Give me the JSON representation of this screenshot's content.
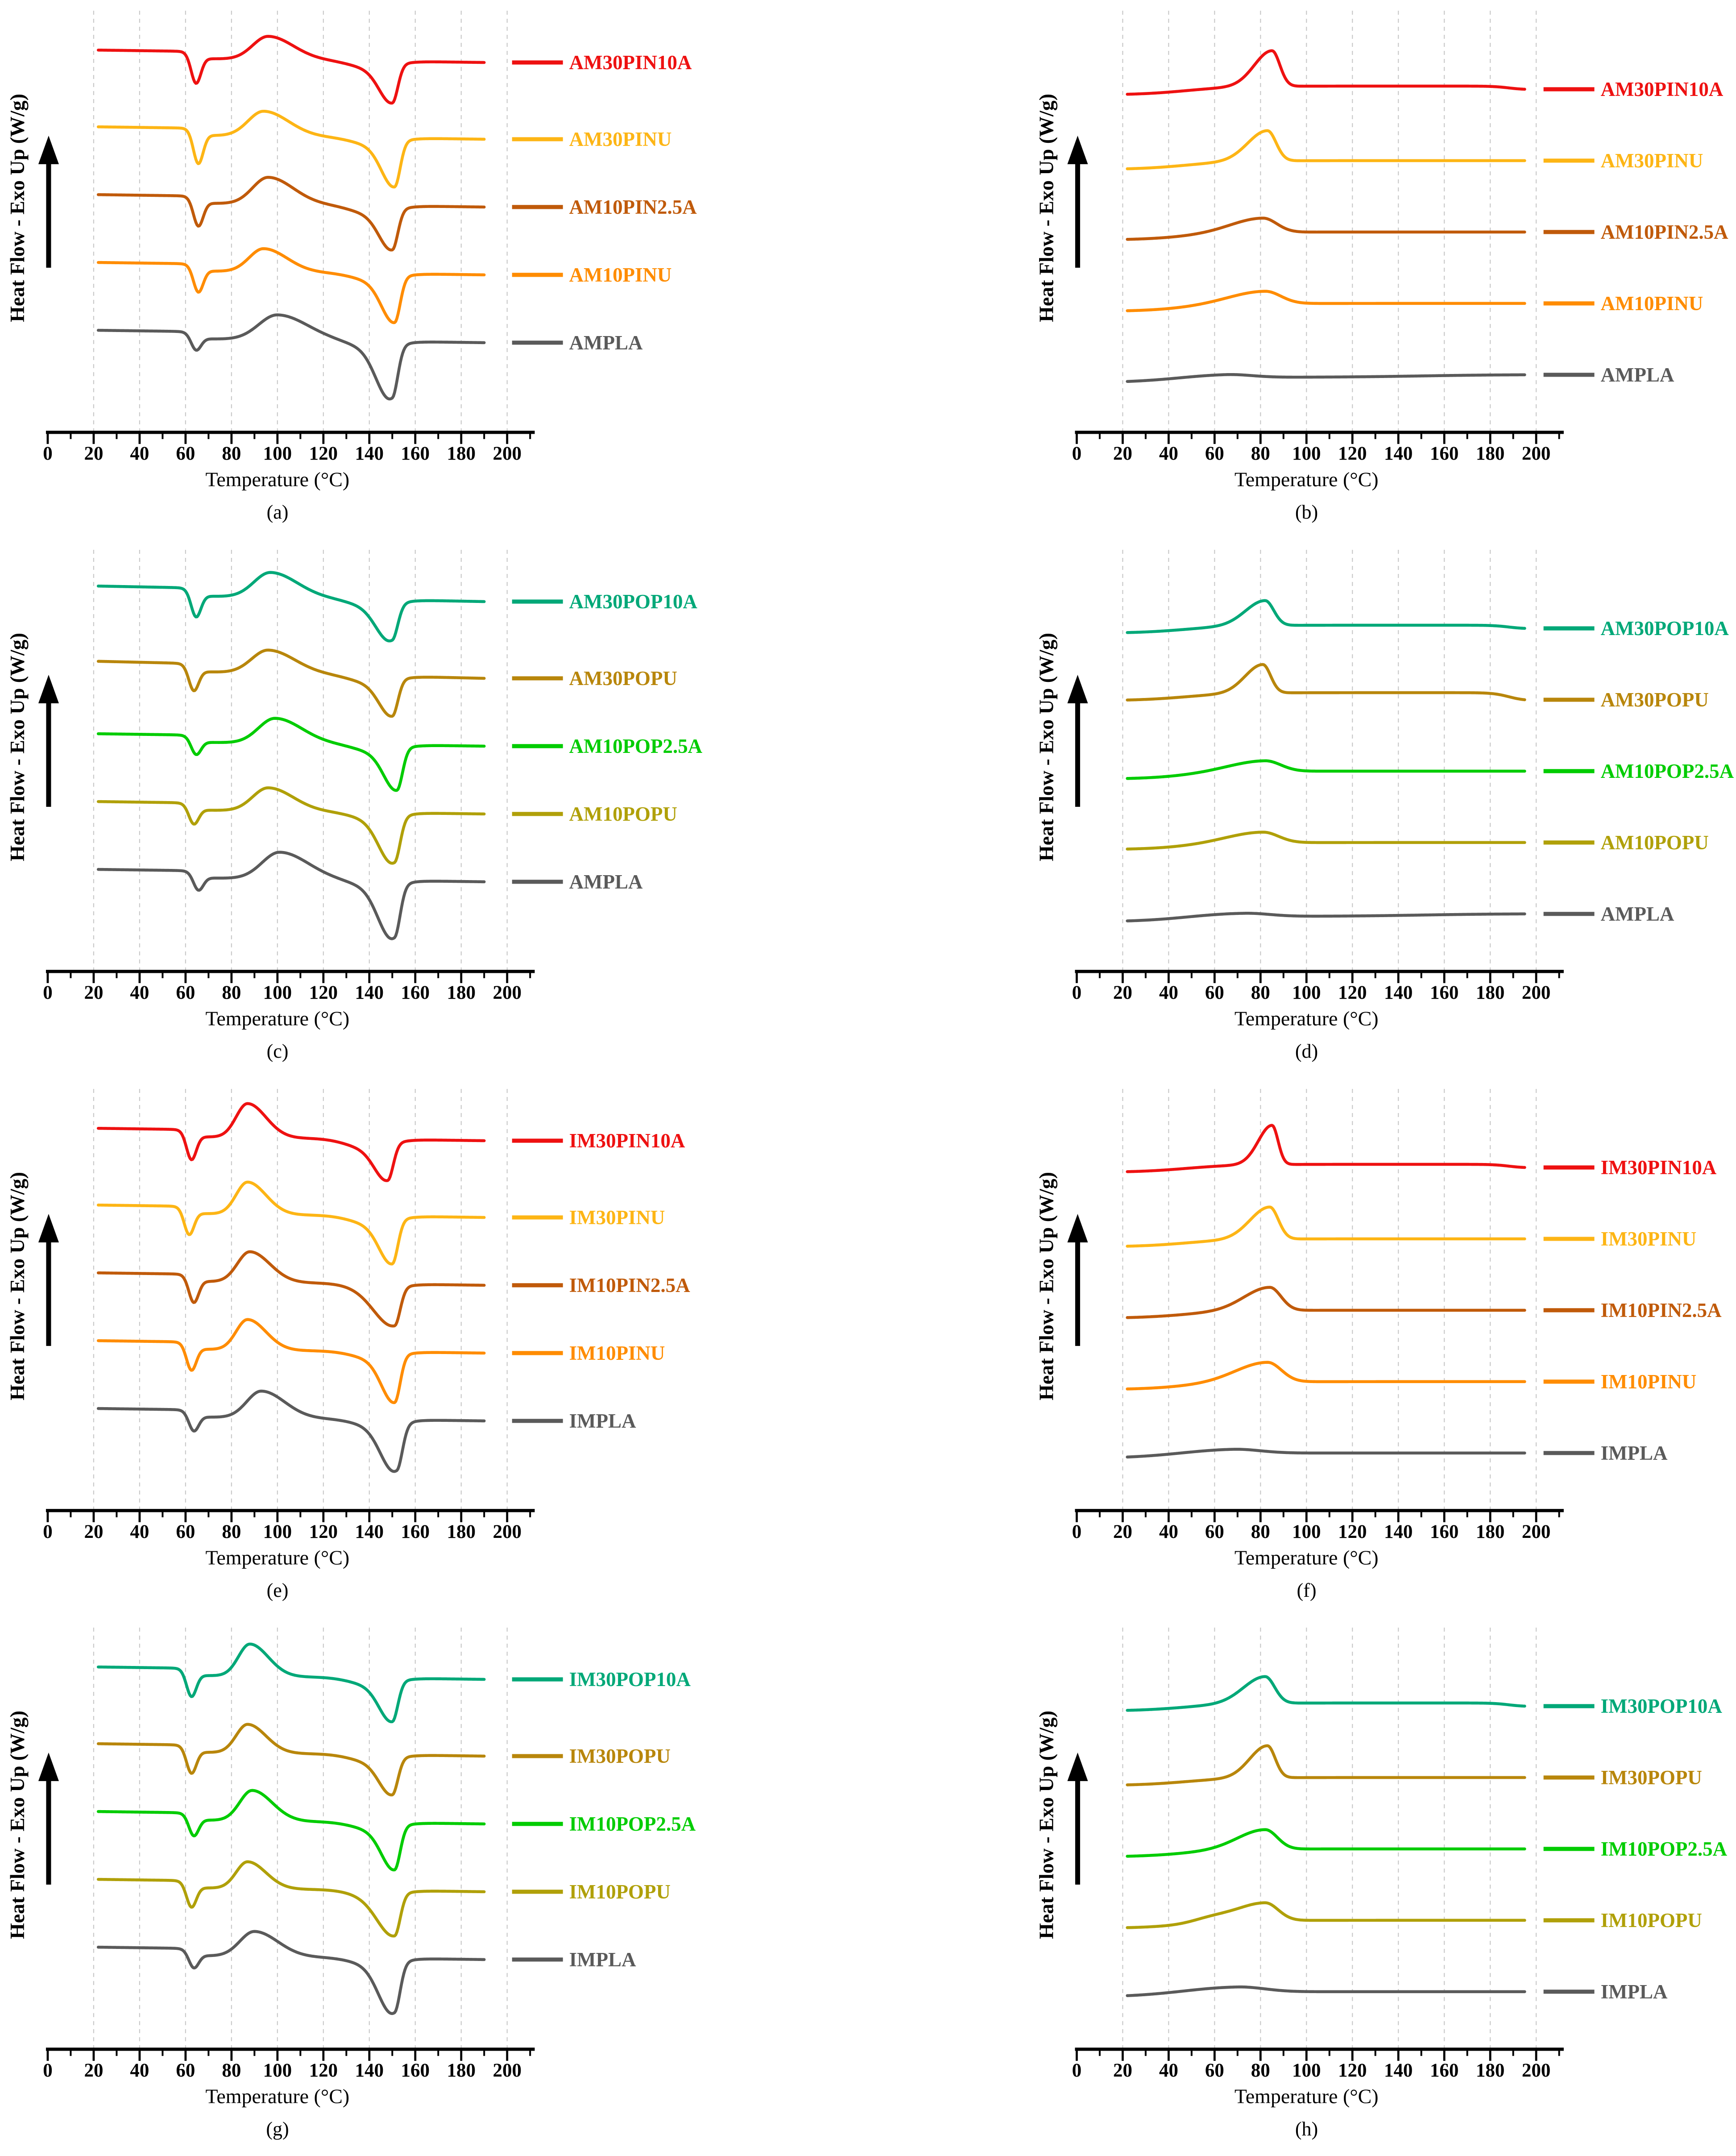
{
  "figure": {
    "x_axis_label": "Temperature (°C)",
    "y_axis_label": "Heat Flow - Exo Up (W/g)",
    "y_axis_arrow": "up-arrow-icon",
    "x_tick_labels": [
      "0",
      "20",
      "40",
      "60",
      "80",
      "100",
      "120",
      "140",
      "160",
      "180",
      "200"
    ],
    "grid_style": "vertical-dashed",
    "colors": {
      "red": "#ee1111",
      "amber": "#fdb515",
      "brown_orange": "#c05a0a",
      "orange": "#ff8c00",
      "gray": "#5a5a5a",
      "teal": "#00a878",
      "goldenrod": "#b8860b",
      "green": "#00cc00",
      "olive": "#b0a009",
      "axis": "#000000",
      "gridline": "#c9c9c9"
    }
  },
  "chart_data": [
    {
      "id": "a",
      "caption": "(a)",
      "type": "line",
      "mode": "heating",
      "column": "left",
      "xlabel": "Temperature (°C)",
      "ylabel": "Heat Flow - Exo Up (W/g)",
      "x_range": [
        0,
        200
      ],
      "x_tick_step": 20,
      "x_minor_step": 10,
      "legend_position": "right",
      "series": [
        {
          "name": "AM30PIN10A",
          "color": "#ee1111",
          "Tg_C": 63,
          "Tcc_C": 96,
          "Tm_C": 150,
          "tg_dip": 30,
          "tg_step": 8,
          "cc_height": 26,
          "cc_width": 7.5,
          "melt_depth": 42,
          "premelt": 8
        },
        {
          "name": "AM30PINU",
          "color": "#fdb515",
          "Tg_C": 64,
          "Tcc_C": 94,
          "Tm_C": 151,
          "tg_dip": 34,
          "tg_step": 8,
          "cc_height": 28,
          "cc_width": 7.5,
          "melt_depth": 50,
          "premelt": 8
        },
        {
          "name": "AM10PIN2.5A",
          "color": "#c05a0a",
          "Tg_C": 64,
          "Tcc_C": 96,
          "Tm_C": 150,
          "tg_dip": 28,
          "tg_step": 8,
          "cc_height": 30,
          "cc_width": 7.5,
          "melt_depth": 44,
          "premelt": 9
        },
        {
          "name": "AM10PINU",
          "color": "#ff8c00",
          "Tg_C": 64,
          "Tcc_C": 94,
          "Tm_C": 151,
          "tg_dip": 26,
          "tg_step": 8,
          "cc_height": 26,
          "cc_width": 7,
          "melt_depth": 50,
          "premelt": 8
        },
        {
          "name": "AMPLA",
          "color": "#5a5a5a",
          "Tg_C": 63,
          "Tcc_C": 100,
          "Tm_C": 150,
          "tg_dip": 15,
          "tg_step": 8,
          "cc_height": 28,
          "cc_width": 9,
          "melt_depth": 52,
          "melt_shoulder": 12,
          "premelt": 8
        }
      ]
    },
    {
      "id": "b",
      "caption": "(b)",
      "type": "line",
      "mode": "cooling",
      "column": "right",
      "xlabel": "Temperature (°C)",
      "ylabel": "Heat Flow - Exo Up (W/g)",
      "x_range": [
        0,
        200
      ],
      "x_tick_step": 20,
      "x_minor_step": 10,
      "legend_position": "right",
      "series": [
        {
          "name": "AM30PIN10A",
          "color": "#ee1111",
          "Tc_C": 85,
          "peak_height": 40,
          "peak_width": 4.5,
          "baseline_rise": 10,
          "end_droop": 4
        },
        {
          "name": "AM30PINU",
          "color": "#fdb515",
          "Tc_C": 83,
          "peak_height": 34,
          "peak_width": 5,
          "baseline_rise": 10
        },
        {
          "name": "AM10PIN2.5A",
          "color": "#c05a0a",
          "Tc_C": 81,
          "peak_height": 16,
          "peak_width": 8,
          "baseline_rise": 9
        },
        {
          "name": "AM10PINU",
          "color": "#ff8c00",
          "Tc_C": 82,
          "peak_height": 14,
          "peak_width": 9,
          "baseline_rise": 9
        },
        {
          "name": "AMPLA",
          "color": "#5a5a5a",
          "Tc_C": 65,
          "peak_height": 4,
          "peak_width": 14,
          "baseline_rise": 6,
          "end_rise": 3
        }
      ]
    },
    {
      "id": "c",
      "caption": "(c)",
      "type": "line",
      "mode": "heating",
      "column": "left",
      "xlabel": "Temperature (°C)",
      "ylabel": "Heat Flow - Exo Up (W/g)",
      "x_range": [
        0,
        200
      ],
      "x_tick_step": 20,
      "x_minor_step": 10,
      "legend_position": "right",
      "series": [
        {
          "name": "AM30POP10A",
          "color": "#00a878",
          "Tg_C": 63,
          "Tcc_C": 97,
          "Tm_C": 150,
          "tg_dip": 26,
          "tg_step": 9,
          "cc_height": 28,
          "cc_width": 8,
          "melt_depth": 36,
          "melt_shoulder": 8,
          "slope": 0.05
        },
        {
          "name": "AM30POPU",
          "color": "#b8860b",
          "Tg_C": 62,
          "Tcc_C": 96,
          "Tm_C": 150,
          "tg_dip": 24,
          "tg_step": 9,
          "cc_height": 26,
          "cc_width": 8,
          "melt_depth": 40,
          "slope": 0.06
        },
        {
          "name": "AM10POP2.5A",
          "color": "#00cc00",
          "Tg_C": 63,
          "Tcc_C": 99,
          "Tm_C": 152,
          "tg_dip": 16,
          "tg_step": 8,
          "cc_height": 28,
          "cc_width": 8,
          "melt_depth": 46
        },
        {
          "name": "AM10POPU",
          "color": "#b0a009",
          "Tg_C": 62,
          "Tcc_C": 96,
          "Tm_C": 151,
          "tg_dip": 18,
          "tg_step": 8,
          "cc_height": 26,
          "cc_width": 7.5,
          "melt_depth": 46,
          "melt_shoulder": 9
        },
        {
          "name": "AMPLA",
          "color": "#5a5a5a",
          "Tg_C": 64,
          "Tcc_C": 101,
          "Tm_C": 151,
          "tg_dip": 16,
          "tg_step": 8,
          "cc_height": 30,
          "cc_width": 8.5,
          "melt_depth": 52,
          "melt_shoulder": 13
        }
      ]
    },
    {
      "id": "d",
      "caption": "(d)",
      "type": "line",
      "mode": "cooling",
      "column": "right",
      "xlabel": "Temperature (°C)",
      "ylabel": "Heat Flow - Exo Up (W/g)",
      "x_range": [
        0,
        200
      ],
      "x_tick_step": 20,
      "x_minor_step": 10,
      "legend_position": "right",
      "series": [
        {
          "name": "AM30POP10A",
          "color": "#00a878",
          "Tc_C": 82,
          "peak_height": 28,
          "peak_width": 5,
          "baseline_rise": 9,
          "end_droop": 4
        },
        {
          "name": "AM30POPU",
          "color": "#b8860b",
          "Tc_C": 81,
          "peak_height": 32,
          "peak_width": 4.5,
          "baseline_rise": 9,
          "end_droop": 9
        },
        {
          "name": "AM10POP2.5A",
          "color": "#00cc00",
          "Tc_C": 82,
          "peak_height": 12,
          "peak_width": 9,
          "baseline_rise": 9
        },
        {
          "name": "AM10POPU",
          "color": "#b0a009",
          "Tc_C": 81,
          "peak_height": 12,
          "peak_width": 9,
          "baseline_rise": 8
        },
        {
          "name": "AMPLA",
          "color": "#5a5a5a",
          "Tc_C": 73,
          "peak_height": 4,
          "peak_width": 14,
          "baseline_rise": 6,
          "end_rise": 3
        }
      ]
    },
    {
      "id": "e",
      "caption": "(e)",
      "type": "line",
      "mode": "heating",
      "column": "left",
      "xlabel": "Temperature (°C)",
      "ylabel": "Heat Flow - Exo Up (W/g)",
      "x_range": [
        0,
        200
      ],
      "x_tick_step": 20,
      "x_minor_step": 10,
      "legend_position": "right",
      "series": [
        {
          "name": "IM30PIN10A",
          "color": "#ee1111",
          "Tg_C": 61,
          "Tcc_C": 87,
          "Tm_C": 148,
          "tg_dip": 28,
          "tg_step": 8,
          "cc_height": 38,
          "cc_width": 5.5,
          "melt_depth": 40,
          "premelt": 10
        },
        {
          "name": "IM30PINU",
          "color": "#fdb515",
          "Tg_C": 60,
          "Tcc_C": 87,
          "Tm_C": 150,
          "tg_dip": 26,
          "tg_step": 8,
          "cc_height": 36,
          "cc_width": 5.5,
          "melt_depth": 48,
          "premelt": 9
        },
        {
          "name": "IM10PIN2.5A",
          "color": "#c05a0a",
          "Tg_C": 62,
          "Tcc_C": 88,
          "Tm_C": 151,
          "tg_dip": 26,
          "tg_step": 8,
          "cc_height": 34,
          "cc_width": 6,
          "melt_depth": 42,
          "melt_wl": 8
        },
        {
          "name": "IM10PINU",
          "color": "#ff8c00",
          "Tg_C": 61,
          "Tcc_C": 87,
          "Tm_C": 151,
          "tg_dip": 26,
          "tg_step": 8,
          "cc_height": 34,
          "cc_width": 5.5,
          "melt_depth": 52
        },
        {
          "name": "IMPLA",
          "color": "#5a5a5a",
          "Tg_C": 62,
          "Tcc_C": 93,
          "Tm_C": 152,
          "tg_dip": 18,
          "tg_step": 8,
          "cc_height": 30,
          "cc_width": 7,
          "melt_depth": 46,
          "melt_shoulder": 11
        }
      ]
    },
    {
      "id": "f",
      "caption": "(f)",
      "type": "line",
      "mode": "cooling",
      "column": "right",
      "xlabel": "Temperature (°C)",
      "ylabel": "Heat Flow - Exo Up (W/g)",
      "x_range": [
        0,
        200
      ],
      "x_tick_step": 20,
      "x_minor_step": 10,
      "legend_position": "right",
      "series": [
        {
          "name": "IM30PIN10A",
          "color": "#ee1111",
          "Tc_C": 85,
          "peak_height": 44,
          "peak_width": 3.5,
          "baseline_rise": 9,
          "end_droop": 4
        },
        {
          "name": "IM30PINU",
          "color": "#fdb515",
          "Tc_C": 84,
          "peak_height": 36,
          "peak_width": 5,
          "baseline_rise": 9
        },
        {
          "name": "IM10PIN2.5A",
          "color": "#c05a0a",
          "Tc_C": 84,
          "peak_height": 26,
          "peak_width": 6.5,
          "baseline_rise": 9
        },
        {
          "name": "IM10PINU",
          "color": "#ff8c00",
          "Tc_C": 83,
          "peak_height": 22,
          "peak_width": 8,
          "baseline_rise": 9
        },
        {
          "name": "IMPLA",
          "color": "#5a5a5a",
          "Tc_C": 68,
          "peak_height": 5,
          "peak_width": 15,
          "baseline_rise": 6
        }
      ]
    },
    {
      "id": "g",
      "caption": "(g)",
      "type": "line",
      "mode": "heating",
      "column": "left",
      "xlabel": "Temperature (°C)",
      "ylabel": "Heat Flow - Exo Up (W/g)",
      "x_range": [
        0,
        200
      ],
      "x_tick_step": 20,
      "x_minor_step": 10,
      "legend_position": "right",
      "series": [
        {
          "name": "IM30POP10A",
          "color": "#00a878",
          "Tg_C": 61,
          "Tcc_C": 88,
          "Tm_C": 150,
          "tg_dip": 26,
          "tg_step": 8,
          "cc_height": 36,
          "cc_width": 5.5,
          "melt_depth": 44
        },
        {
          "name": "IM30POPU",
          "color": "#b8860b",
          "Tg_C": 61,
          "Tcc_C": 87,
          "Tm_C": 150,
          "tg_dip": 26,
          "tg_step": 8,
          "cc_height": 32,
          "cc_width": 5.5,
          "melt_depth": 40
        },
        {
          "name": "IM10POP2.5A",
          "color": "#00cc00",
          "Tg_C": 62,
          "Tcc_C": 89,
          "Tm_C": 151,
          "tg_dip": 20,
          "tg_step": 8,
          "cc_height": 34,
          "cc_width": 6,
          "melt_depth": 48
        },
        {
          "name": "IM10POPU",
          "color": "#b0a009",
          "Tg_C": 61,
          "Tcc_C": 87,
          "Tm_C": 151,
          "tg_dip": 24,
          "tg_step": 8,
          "cc_height": 30,
          "cc_width": 5.5,
          "melt_depth": 46,
          "melt_wl": 7
        },
        {
          "name": "IMPLA",
          "color": "#5a5a5a",
          "Tg_C": 62,
          "Tcc_C": 90,
          "Tm_C": 151,
          "tg_dip": 16,
          "tg_step": 8,
          "cc_height": 28,
          "cc_width": 7,
          "melt_depth": 50,
          "melt_shoulder": 11
        }
      ]
    },
    {
      "id": "h",
      "caption": "(h)",
      "type": "line",
      "mode": "cooling",
      "column": "right",
      "xlabel": "Temperature (°C)",
      "ylabel": "Heat Flow - Exo Up (W/g)",
      "x_range": [
        0,
        200
      ],
      "x_tick_step": 20,
      "x_minor_step": 10,
      "legend_position": "right",
      "series": [
        {
          "name": "IM30POP10A",
          "color": "#00a878",
          "Tc_C": 82,
          "peak_height": 30,
          "peak_width": 5.5,
          "baseline_rise": 9,
          "end_droop": 4
        },
        {
          "name": "IM30POPU",
          "color": "#b8860b",
          "Tc_C": 83,
          "peak_height": 36,
          "peak_width": 4.5,
          "baseline_rise": 9
        },
        {
          "name": "IM10POP2.5A",
          "color": "#00cc00",
          "Tc_C": 82,
          "peak_height": 22,
          "peak_width": 7,
          "baseline_rise": 9
        },
        {
          "name": "IM10POPU",
          "color": "#b0a009",
          "Tc_C": 82,
          "peak_height": 20,
          "peak_width": 7.5,
          "baseline_rise": 9,
          "shoulder_T": 58,
          "shoulder_h": 4
        },
        {
          "name": "IMPLA",
          "color": "#5a5a5a",
          "Tc_C": 70,
          "peak_height": 6,
          "peak_width": 15,
          "baseline_rise": 6
        }
      ]
    }
  ]
}
